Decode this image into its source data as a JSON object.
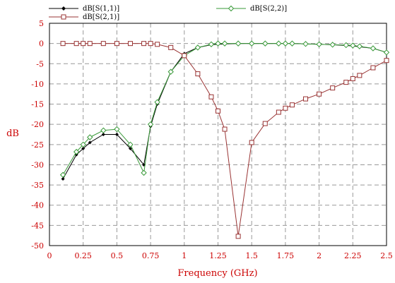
{
  "chart_data": {
    "type": "line",
    "xlabel": "Frequency (GHz)",
    "ylabel": "dB",
    "xlim": [
      0,
      2.5
    ],
    "ylim": [
      -50,
      5
    ],
    "grid": true,
    "legend_position": "top",
    "x_ticks": [
      0,
      0.25,
      0.5,
      0.75,
      1,
      1.25,
      1.5,
      1.75,
      2,
      2.25,
      2.5
    ],
    "x_tick_labels": [
      "0",
      "0.25",
      "0.5",
      "0.75",
      "1",
      "1.25",
      "1.5",
      "1.75",
      "2",
      "2.25",
      "2.5"
    ],
    "y_ticks": [
      5,
      0,
      -5,
      -10,
      -15,
      -20,
      -25,
      -30,
      -35,
      -40,
      -45,
      -50
    ],
    "y_tick_labels": [
      "5",
      "0",
      "-5",
      "-10",
      "-15",
      "-20",
      "-25",
      "-30",
      "-35",
      "-40",
      "-45",
      "-50"
    ],
    "series": [
      {
        "name": "dB[S(1,1)]",
        "color": "#000000",
        "marker": "diamond-filled",
        "points": [
          [
            0.1,
            -33.5
          ],
          [
            0.2,
            -27.5
          ],
          [
            0.25,
            -26
          ],
          [
            0.3,
            -24.5
          ],
          [
            0.4,
            -22.5
          ],
          [
            0.5,
            -22.5
          ],
          [
            0.6,
            -26
          ],
          [
            0.7,
            -30
          ],
          [
            0.75,
            -20.5
          ],
          [
            0.8,
            -15
          ],
          [
            0.9,
            -7
          ],
          [
            1.0,
            -2.5
          ],
          [
            1.1,
            -1
          ],
          [
            1.2,
            -0.3
          ],
          [
            1.25,
            -0.2
          ],
          [
            1.3,
            -0.1
          ],
          [
            1.4,
            0
          ],
          [
            1.5,
            0
          ],
          [
            1.6,
            0
          ],
          [
            1.7,
            0
          ],
          [
            1.75,
            0
          ],
          [
            1.8,
            0
          ],
          [
            1.9,
            -0.1
          ],
          [
            2.0,
            -0.2
          ],
          [
            2.1,
            -0.3
          ],
          [
            2.2,
            -0.5
          ],
          [
            2.25,
            -0.6
          ],
          [
            2.3,
            -0.8
          ],
          [
            2.4,
            -1.2
          ],
          [
            2.5,
            -2.2
          ]
        ]
      },
      {
        "name": "dB[S(2,2)]",
        "color": "#3a9a3a",
        "marker": "diamond-open",
        "points": [
          [
            0.1,
            -32.5
          ],
          [
            0.2,
            -26.8
          ],
          [
            0.25,
            -25
          ],
          [
            0.3,
            -23.2
          ],
          [
            0.4,
            -21.5
          ],
          [
            0.5,
            -21.2
          ],
          [
            0.6,
            -25
          ],
          [
            0.7,
            -32
          ],
          [
            0.75,
            -20
          ],
          [
            0.8,
            -14.5
          ],
          [
            0.9,
            -7
          ],
          [
            1.0,
            -3
          ],
          [
            1.1,
            -1
          ],
          [
            1.2,
            -0.2
          ],
          [
            1.25,
            0
          ],
          [
            1.3,
            0
          ],
          [
            1.4,
            0
          ],
          [
            1.5,
            0
          ],
          [
            1.6,
            0
          ],
          [
            1.7,
            0
          ],
          [
            1.75,
            0
          ],
          [
            1.8,
            0
          ],
          [
            1.9,
            -0.1
          ],
          [
            2.0,
            -0.2
          ],
          [
            2.1,
            -0.3
          ],
          [
            2.2,
            -0.4
          ],
          [
            2.25,
            -0.5
          ],
          [
            2.3,
            -0.7
          ],
          [
            2.4,
            -1.2
          ],
          [
            2.5,
            -2.2
          ]
        ]
      },
      {
        "name": "dB[S(2,1)]",
        "color": "#993333",
        "marker": "square-open",
        "points": [
          [
            0.1,
            0
          ],
          [
            0.2,
            0
          ],
          [
            0.25,
            0
          ],
          [
            0.3,
            0
          ],
          [
            0.4,
            0
          ],
          [
            0.5,
            0
          ],
          [
            0.6,
            0
          ],
          [
            0.7,
            0
          ],
          [
            0.75,
            0
          ],
          [
            0.8,
            -0.2
          ],
          [
            0.9,
            -1
          ],
          [
            1.0,
            -3
          ],
          [
            1.1,
            -7.5
          ],
          [
            1.2,
            -13.2
          ],
          [
            1.25,
            -16.7
          ],
          [
            1.3,
            -21.2
          ],
          [
            1.4,
            -47.7
          ],
          [
            1.5,
            -24.5
          ],
          [
            1.6,
            -19.8
          ],
          [
            1.7,
            -17
          ],
          [
            1.75,
            -16
          ],
          [
            1.8,
            -15.2
          ],
          [
            1.9,
            -13.7
          ],
          [
            2.0,
            -12.5
          ],
          [
            2.1,
            -11
          ],
          [
            2.2,
            -9.6
          ],
          [
            2.25,
            -8.7
          ],
          [
            2.3,
            -7.9
          ],
          [
            2.4,
            -6
          ],
          [
            2.5,
            -4.2
          ]
        ]
      }
    ]
  }
}
